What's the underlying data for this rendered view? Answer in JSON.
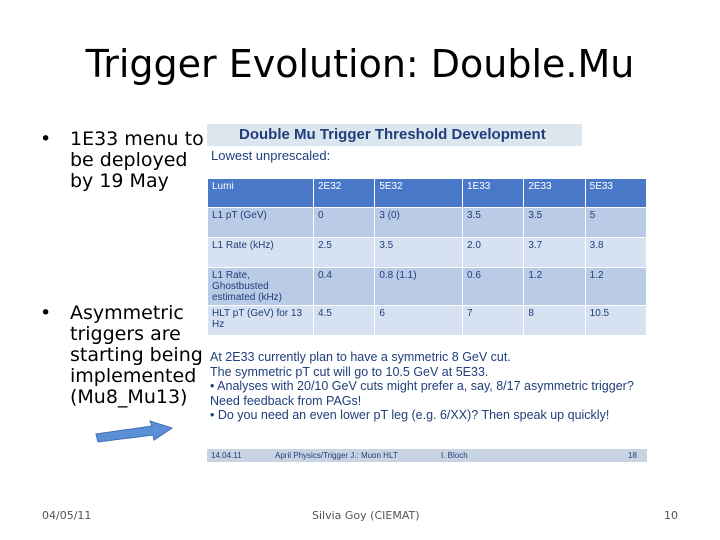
{
  "title": "Trigger Evolution: Double.Mu",
  "bullets": [
    {
      "text": "1E33 menu to be deployed by 19 May"
    },
    {
      "text": "Asymmetric triggers are starting being implemented (Mu8_Mu13)"
    }
  ],
  "panel": {
    "heading": "Double Mu Trigger Threshold Development",
    "subheading": "Lowest unprescaled:",
    "table": {
      "header": [
        "Lumi",
        "2E32",
        "5E32",
        "1E33",
        "2E33",
        "5E33"
      ],
      "rows": [
        [
          "L1 pT (GeV)",
          "0",
          "3 (0)",
          "3.5",
          "3.5",
          "5"
        ],
        [
          "L1 Rate (kHz)",
          "2.5",
          "3.5",
          "2.0",
          "3.7",
          "3.8"
        ],
        [
          "L1 Rate, Ghostbusted estimated (kHz)",
          "0.4",
          "0.8 (1.1)",
          "0.6",
          "1.2",
          "1.2"
        ],
        [
          "HLT pT (GeV) for 13 Hz",
          "4.5",
          "6",
          "7",
          "8",
          "10.5"
        ]
      ]
    },
    "notes": [
      "At 2E33 currently plan to have a symmetric 8 GeV cut.",
      "The symmetric pT cut will go to 10.5 GeV at 5E33.",
      "• Analyses with 20/10 GeV cuts might prefer a, say, 8/17 asymmetric trigger? Need feedback from PAGs!",
      "• Do you need an even lower pT leg (e.g. 6/XX)? Then speak up quickly!"
    ],
    "footer": {
      "date": "14.04.11",
      "topic": "April Physics/Trigger J.: Muon HLT",
      "author": "I. Bloch",
      "page": "18"
    }
  },
  "slide_footer": {
    "date": "04/05/11",
    "author": "Silvia Goy (CIEMAT)",
    "page": "10"
  },
  "colors": {
    "accent": "#4a78c8",
    "text_blue": "#1f3e7a",
    "arrow": "#5b8fd6"
  }
}
